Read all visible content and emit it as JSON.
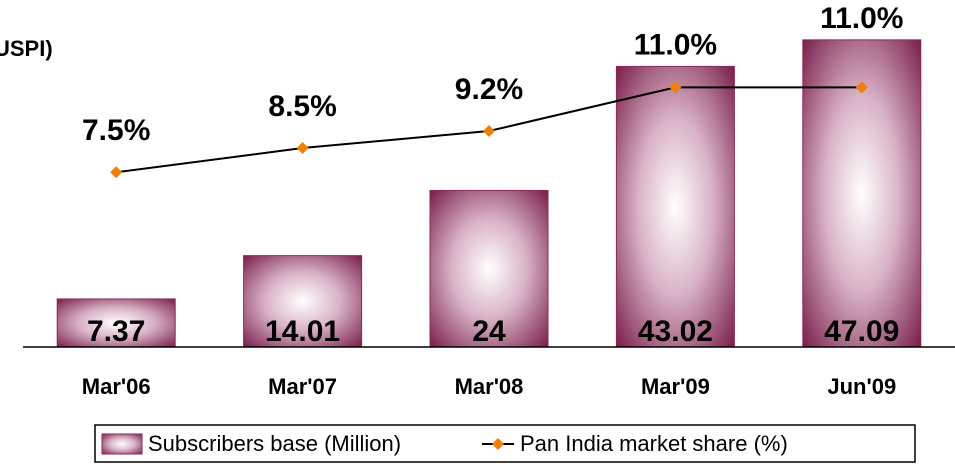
{
  "chart_data": {
    "type": "bar_line",
    "title": "USPI)",
    "categories": [
      "Mar'06",
      "Mar'07",
      "Mar'08",
      "Mar'09",
      "Jun'09"
    ],
    "ylim": [
      0,
      53.2
    ],
    "y2lim": [
      0.3,
      14.6
    ],
    "series": [
      {
        "name": "Subscribers base (Million)",
        "type": "bar",
        "color": "#8b2a5a",
        "values": [
          7.37,
          14.01,
          24,
          43.02,
          47.09
        ]
      },
      {
        "name": "Pan India market share (%)",
        "type": "line",
        "axis": "y2",
        "color": "#000000",
        "marker_color": "#f07f09",
        "values": [
          7.5,
          8.5,
          9.2,
          11.0,
          11.0
        ],
        "value_labels": [
          "7.5%",
          "8.5%",
          "9.2%",
          "11.0%",
          "11.0%"
        ]
      }
    ]
  }
}
